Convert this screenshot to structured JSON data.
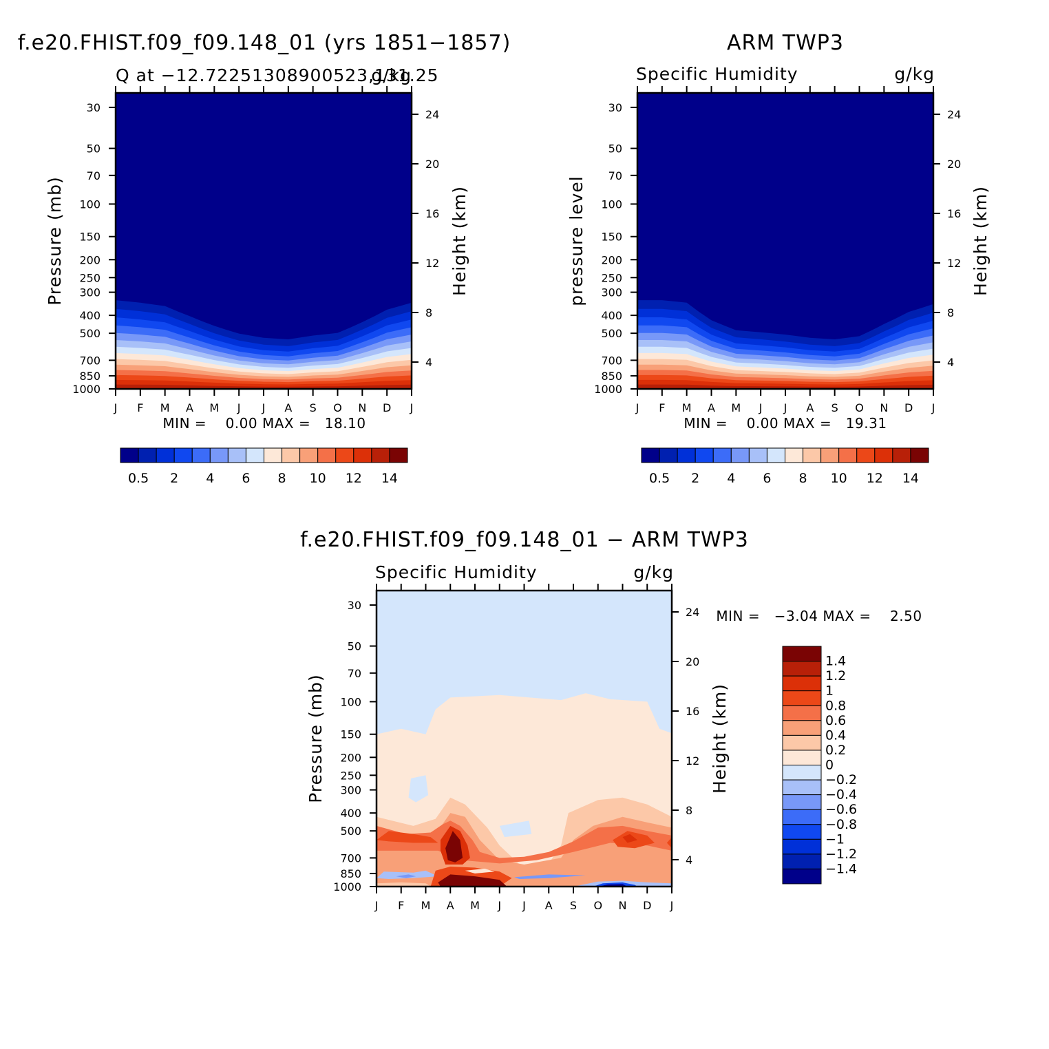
{
  "figure": {
    "pressure_ticks": [
      30,
      50,
      70,
      100,
      150,
      200,
      250,
      300,
      400,
      500,
      700,
      850,
      1000
    ],
    "height_ticks": [
      4,
      8,
      12,
      16,
      20,
      24
    ],
    "month_ticks": [
      "J",
      "F",
      "M",
      "A",
      "M",
      "J",
      "J",
      "A",
      "S",
      "O",
      "N",
      "D",
      "J"
    ],
    "abs_colors": [
      "#00008a",
      "#0020b0",
      "#0030d8",
      "#1048f0",
      "#3c6cf8",
      "#7898f8",
      "#a8c0f8",
      "#d4e6fc",
      "#fde8d8",
      "#fcc8a8",
      "#f8a078",
      "#f47048",
      "#ec4818",
      "#dc3008",
      "#b82008",
      "#7a0404"
    ],
    "abs_labels": [
      "0.5",
      "2",
      "4",
      "6",
      "8",
      "10",
      "12",
      "14"
    ],
    "diff_colors": [
      "#00008a",
      "#0020b0",
      "#0030d8",
      "#1048f0",
      "#3c6cf8",
      "#7898f8",
      "#a8c0f8",
      "#d4e6fc",
      "#fde8d8",
      "#fcc8a8",
      "#f8a078",
      "#f47048",
      "#ec4818",
      "#dc3008",
      "#b82008",
      "#7a0404"
    ],
    "diff_labels": [
      "1.4",
      "1.2",
      "1",
      "0.8",
      "0.6",
      "0.4",
      "0.2",
      "0",
      "−0.2",
      "−0.4",
      "−0.6",
      "−0.8",
      "−1",
      "−1.2",
      "−1.4"
    ]
  },
  "chart_data": [
    {
      "type": "heatmap",
      "title": "f.e20.FHIST.f09_f09.148_01 (yrs 1851−1857)",
      "subtitle_left": "Q at −12.72251308900523,131.25",
      "subtitle_right": "g/kg",
      "xlabel": "",
      "ylabel": "Pressure (mb)",
      "ylabel_right": "Height (km)",
      "ylim": [
        1000,
        25
      ],
      "colorbar_levels": [
        0.5,
        1,
        2,
        3,
        4,
        5,
        6,
        7,
        8,
        9,
        10,
        11,
        12,
        13,
        14
      ],
      "minmax_text": "MIN =    0.00 MAX =   18.10",
      "min": 0.0,
      "max": 18.1
    },
    {
      "type": "heatmap",
      "title": "ARM TWP3",
      "subtitle_left": "Specific Humidity",
      "subtitle_right": "g/kg",
      "xlabel": "",
      "ylabel": "pressure level",
      "ylabel_right": "Height (km)",
      "ylim": [
        1000,
        25
      ],
      "colorbar_levels": [
        0.5,
        1,
        2,
        3,
        4,
        5,
        6,
        7,
        8,
        9,
        10,
        11,
        12,
        13,
        14
      ],
      "minmax_text": "MIN =    0.00 MAX =   19.31",
      "min": 0.0,
      "max": 19.31
    },
    {
      "type": "heatmap",
      "title": "f.e20.FHIST.f09_f09.148_01 − ARM TWP3",
      "subtitle_left": "Specific Humidity",
      "subtitle_right": "g/kg",
      "xlabel": "",
      "ylabel": "Pressure (mb)",
      "ylabel_right": "Height (km)",
      "ylim": [
        1000,
        25
      ],
      "colorbar_levels": [
        -1.4,
        -1.2,
        -1,
        -0.8,
        -0.6,
        -0.4,
        -0.2,
        0,
        0.2,
        0.4,
        0.6,
        0.8,
        1,
        1.2,
        1.4
      ],
      "minmax_text": "MIN =   −3.04 MAX =    2.50",
      "min": -3.04,
      "max": 2.5
    }
  ]
}
